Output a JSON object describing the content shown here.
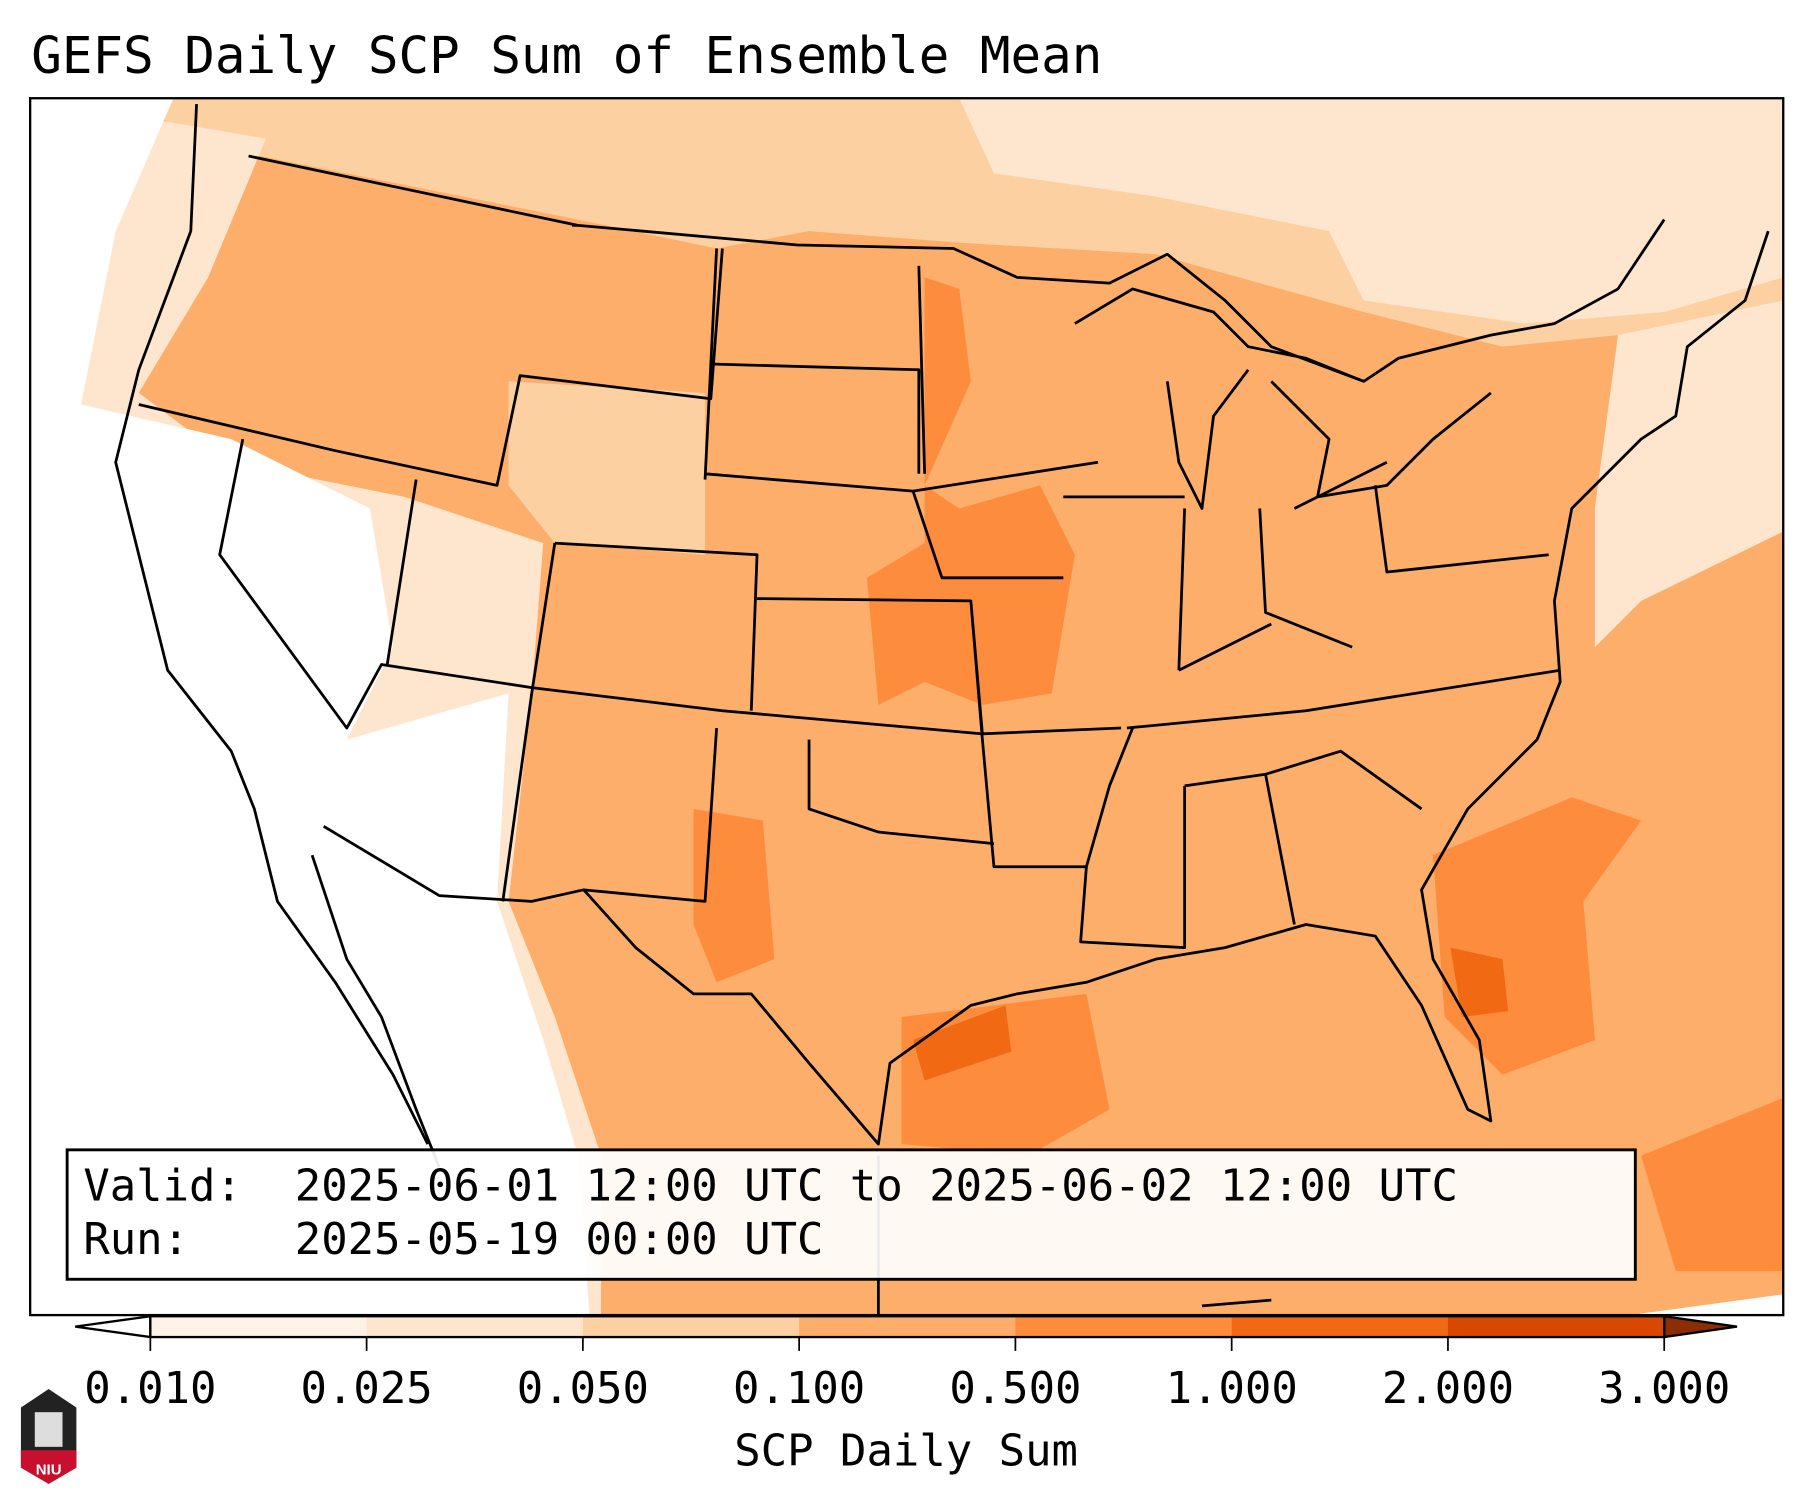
{
  "title": "GEFS Daily SCP Sum of Ensemble Mean",
  "info_box": {
    "valid_label": "Valid:",
    "valid_value": "2025-06-01 12:00 UTC to 2025-06-02 12:00 UTC",
    "run_label": "Run:",
    "run_value": "2025-05-19 00:00 UTC"
  },
  "colorbar": {
    "label": "SCP Daily Sum",
    "ticks": [
      "0.010",
      "0.025",
      "0.050",
      "0.100",
      "0.500",
      "1.000",
      "2.000",
      "3.000"
    ],
    "colors": [
      "#fff2e6",
      "#fee6ce",
      "#fdd0a2",
      "#fdae6b",
      "#fd8d3c",
      "#f16913",
      "#d94801"
    ],
    "under_color": "#ffffff",
    "over_color": "#8c2d04"
  },
  "logo": {
    "text": "NIU"
  }
}
